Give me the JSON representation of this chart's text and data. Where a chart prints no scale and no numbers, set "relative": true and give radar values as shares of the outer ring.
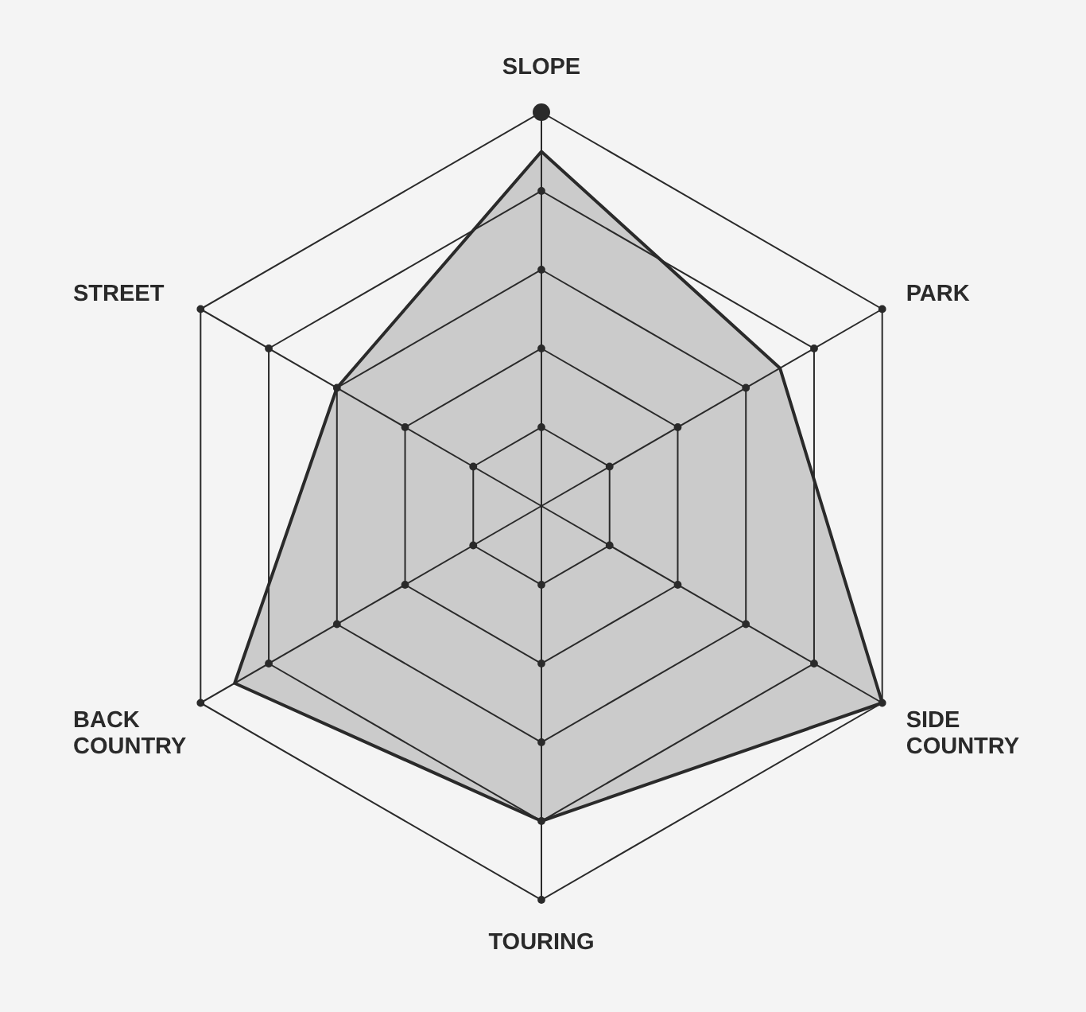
{
  "chart_data": {
    "type": "radar",
    "categories": [
      "SLOPE",
      "PARK",
      "SIDE COUNTRY",
      "TOURING",
      "BACK COUNTRY",
      "STREET"
    ],
    "series": [
      {
        "color": "#cbcbcb",
        "values": [
          0.9,
          0.7,
          1,
          0.8,
          0.9,
          0.6
        ]
      }
    ],
    "relative": true,
    "grid": true
  }
}
